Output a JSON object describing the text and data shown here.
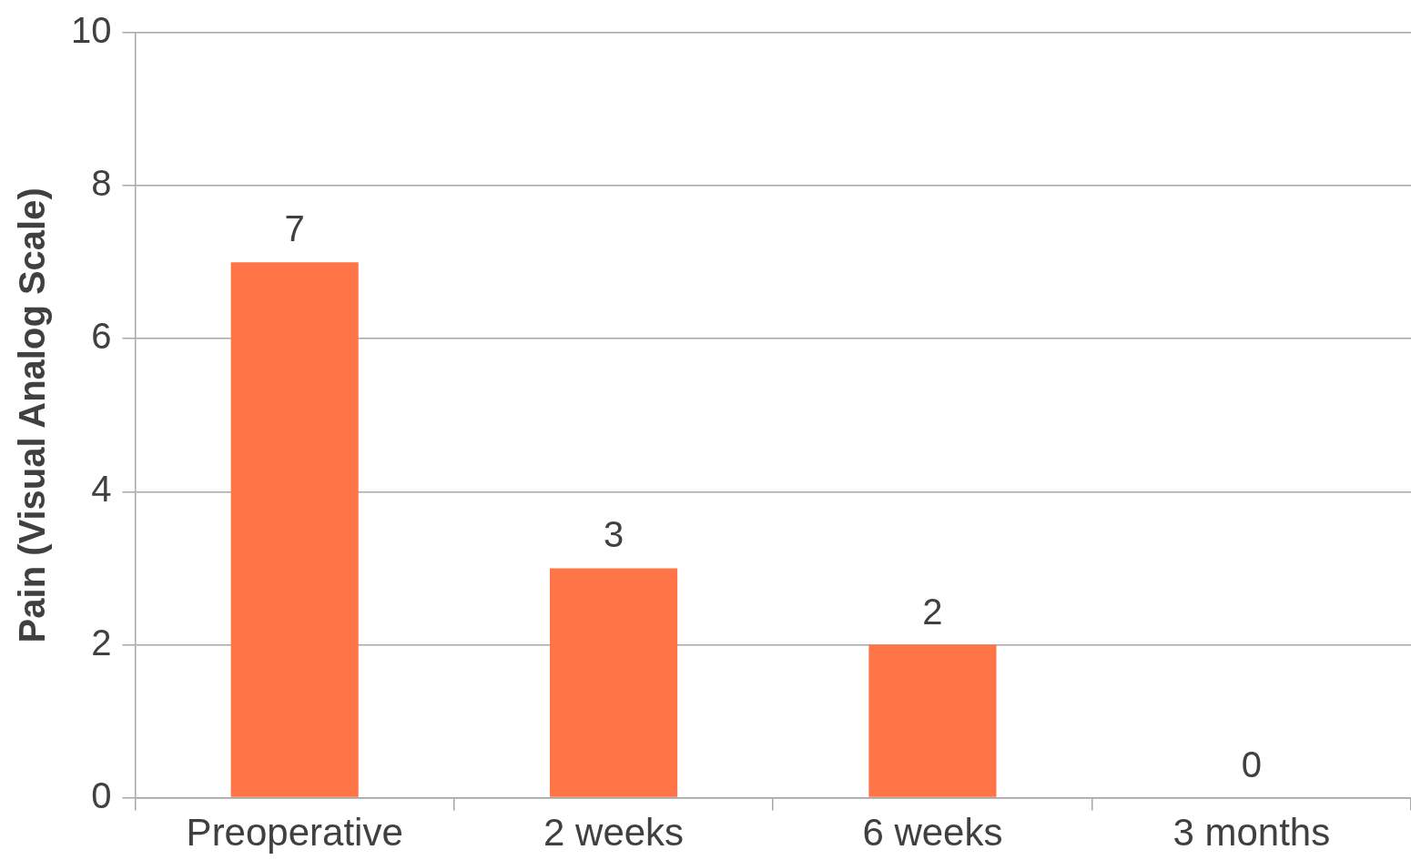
{
  "chart_data": {
    "type": "bar",
    "ylabel": "Pain (Visual Analog Scale)",
    "categories": [
      "Preoperative",
      "2 weeks",
      "6 weeks",
      "3 months"
    ],
    "values": [
      7,
      3,
      2,
      0
    ],
    "color": "#ff7547",
    "ylim": [
      0,
      10
    ],
    "yticks": [
      0,
      2,
      4,
      6,
      8,
      10
    ],
    "grid": "y",
    "data_labels": true,
    "legend": false
  }
}
